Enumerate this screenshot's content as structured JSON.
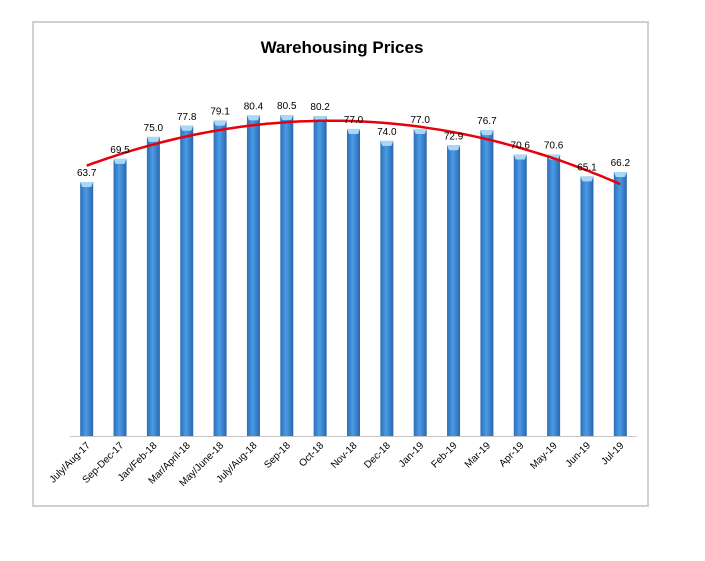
{
  "chart_data": {
    "type": "bar",
    "title": "Warehousing  Prices",
    "xlabel": "",
    "ylabel": "",
    "categories": [
      "July/Aug-17",
      "Sep-Dec-17",
      "Jan/Feb-18",
      "Mar/April-18",
      "May/June-18",
      "July/Aug-18",
      "Sep-18",
      "Oct-18",
      "Nov-18",
      "Dec-18",
      "Jan-19",
      "Feb-19",
      "Mar-19",
      "Apr-19",
      "May-19",
      "Jun-19",
      "Jul-19"
    ],
    "values": [
      63.7,
      69.5,
      75.0,
      77.8,
      79.1,
      80.4,
      80.5,
      80.2,
      77.0,
      74.0,
      77.0,
      72.9,
      76.7,
      70.6,
      70.6,
      65.1,
      66.2
    ],
    "data_labels": [
      "63.7",
      "69.5",
      "75.0",
      "77.8",
      "79.1",
      "80.4",
      "80.5",
      "80.2",
      "77.0",
      "74.0",
      "77.0",
      "72.9",
      "76.7",
      "70.6",
      "70.6",
      "65.1",
      "66.2"
    ],
    "ylim": [
      0,
      90
    ],
    "grid": false,
    "legend": "none",
    "trendline": {
      "type": "polynomial",
      "color": "#e8000b"
    },
    "colors": {
      "bar": "#3a86d4",
      "bar_top": "#a9d8f5",
      "axis": "#c8c8c8"
    }
  }
}
